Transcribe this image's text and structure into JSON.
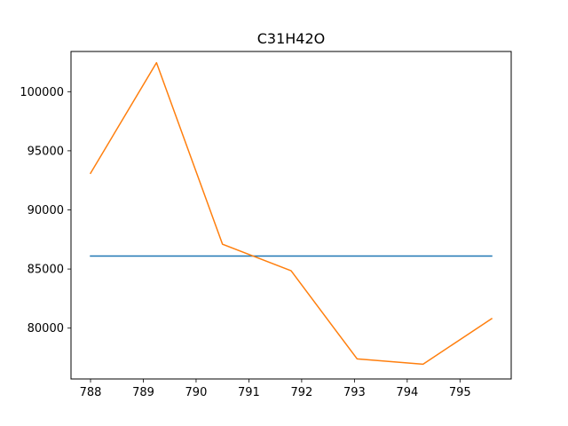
{
  "chart_data": {
    "type": "line",
    "title": "C31H42O",
    "xlabel": "",
    "ylabel": "",
    "xlim": [
      787.63,
      795.97
    ],
    "ylim": [
      75700,
      103400
    ],
    "x_ticks": [
      788,
      789,
      790,
      791,
      792,
      793,
      794,
      795
    ],
    "y_ticks": [
      80000,
      85000,
      90000,
      95000,
      100000
    ],
    "grid": false,
    "series": [
      {
        "color": "#1f77b4",
        "points": [
          [
            788.0,
            86100
          ],
          [
            795.6,
            86100
          ]
        ]
      },
      {
        "color": "#ff7f0e",
        "points": [
          [
            788.0,
            93100
          ],
          [
            789.25,
            102450
          ],
          [
            790.5,
            87100
          ],
          [
            791.8,
            84850
          ],
          [
            793.05,
            77400
          ],
          [
            794.3,
            76950
          ],
          [
            795.6,
            80800
          ]
        ]
      }
    ]
  }
}
